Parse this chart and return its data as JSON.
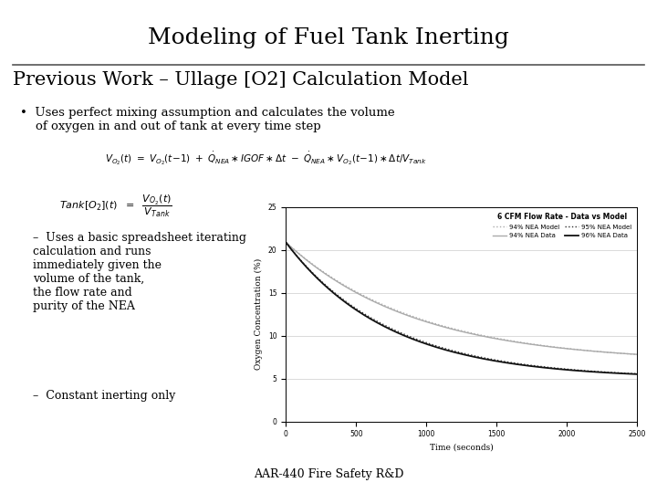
{
  "title": "Modeling of Fuel Tank Inerting",
  "subtitle": "Previous Work – Ullage [O2] Calculation Model",
  "bullet1": "Uses perfect mixing assumption and calculates the volume of oxygen in and out of tank at every time step",
  "dash1_label": "94% NEA Model",
  "solid1_label": "94% NEA Data",
  "dash2_label": "95% NEA Model",
  "solid2_label": "96% NEA Data",
  "chart_title": "6 CFM Flow Rate - Data vs Model",
  "xlabel": "Time (seconds)",
  "ylabel": "Oxygen Concentration (%)",
  "bullet2": "Uses a basic spreadsheet iterating\ncalculation and runs\nimmediately given the\nvolume of the tank,\nthe flow rate and\npurity of the NEA",
  "bullet3": "Constant inerting only",
  "footer": "AAR-440 Fire Safety R&D",
  "bg_color": "#ffffff",
  "text_color": "#000000",
  "xlim": [
    0,
    2500
  ],
  "ylim": [
    0,
    25
  ],
  "xticks": [
    0,
    500,
    1000,
    1500,
    2000,
    2500
  ],
  "yticks": [
    0,
    5,
    10,
    15,
    20,
    25
  ]
}
